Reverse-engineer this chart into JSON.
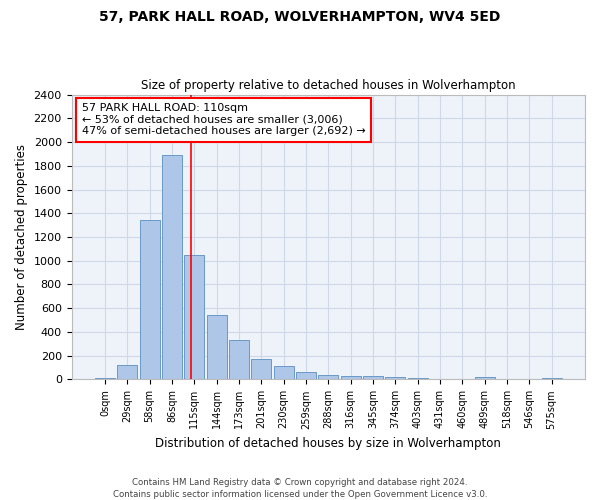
{
  "title": "57, PARK HALL ROAD, WOLVERHAMPTON, WV4 5ED",
  "subtitle": "Size of property relative to detached houses in Wolverhampton",
  "xlabel": "Distribution of detached houses by size in Wolverhampton",
  "ylabel": "Number of detached properties",
  "footer1": "Contains HM Land Registry data © Crown copyright and database right 2024.",
  "footer2": "Contains public sector information licensed under the Open Government Licence v3.0.",
  "bar_labels": [
    "0sqm",
    "29sqm",
    "58sqm",
    "86sqm",
    "115sqm",
    "144sqm",
    "173sqm",
    "201sqm",
    "230sqm",
    "259sqm",
    "288sqm",
    "316sqm",
    "345sqm",
    "374sqm",
    "403sqm",
    "431sqm",
    "460sqm",
    "489sqm",
    "518sqm",
    "546sqm",
    "575sqm"
  ],
  "bar_values": [
    15,
    125,
    1340,
    1890,
    1045,
    545,
    335,
    170,
    110,
    60,
    40,
    30,
    25,
    20,
    15,
    0,
    0,
    20,
    0,
    0,
    15
  ],
  "bar_color": "#aec6e8",
  "bar_edgecolor": "#5a8fc2",
  "annotation_line1": "57 PARK HALL ROAD: 110sqm",
  "annotation_line2": "← 53% of detached houses are smaller (3,006)",
  "annotation_line3": "47% of semi-detached houses are larger (2,692) →",
  "annotation_box_edgecolor": "red",
  "annotation_fontsize": 8,
  "vline_color": "red",
  "vline_x_index": 3.85,
  "grid_color": "#d0d8e8",
  "background_color": "#eef2f9",
  "ylim": [
    0,
    2400
  ],
  "yticks": [
    0,
    200,
    400,
    600,
    800,
    1000,
    1200,
    1400,
    1600,
    1800,
    2000,
    2200,
    2400
  ]
}
